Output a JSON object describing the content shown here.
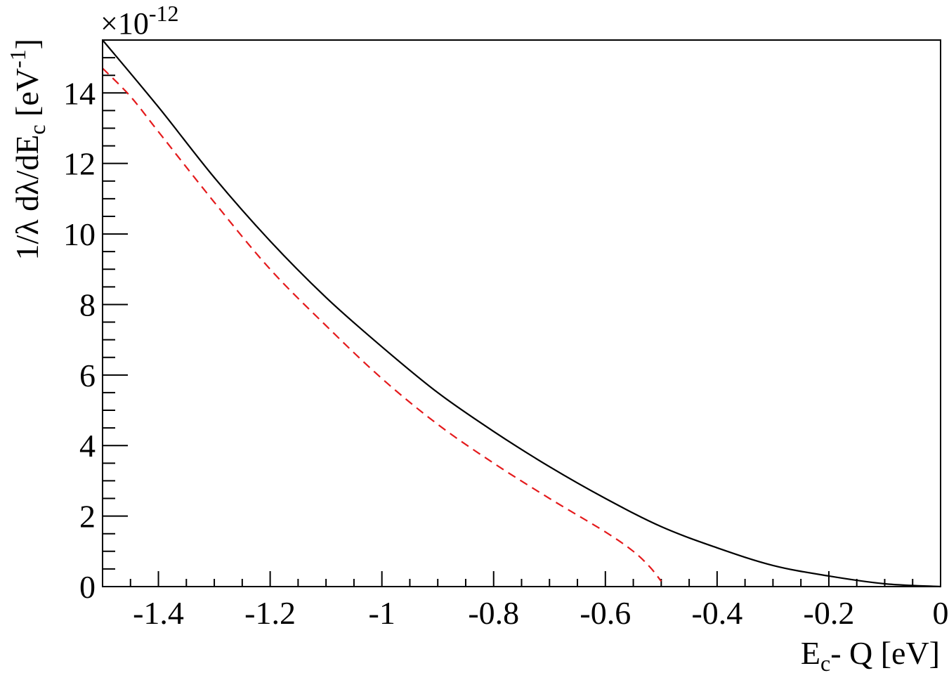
{
  "chart_data": {
    "type": "line",
    "title": "",
    "exponent": {
      "base": "×10",
      "power": "-12"
    },
    "xlabel": {
      "main": "E",
      "sub": "c",
      "rest": "- Q [eV]"
    },
    "ylabel": {
      "p1": "1/λ dλ/dE",
      "sub": "c",
      "p2": " [eV",
      "sup": "-1",
      "p3": "]"
    },
    "xlim": [
      -1.5,
      0
    ],
    "ylim": [
      0,
      15.5
    ],
    "x_ticks": [
      -1.4,
      -1.2,
      -1,
      -0.8,
      -0.6,
      -0.4,
      -0.2,
      0
    ],
    "x_tick_labels": [
      "-1.4",
      "-1.2",
      "-1",
      "-0.8",
      "-0.6",
      "-0.4",
      "-0.2",
      "0"
    ],
    "y_ticks": [
      0,
      2,
      4,
      6,
      8,
      10,
      12,
      14
    ],
    "y_tick_labels": [
      "0",
      "2",
      "4",
      "6",
      "8",
      "10",
      "12",
      "14"
    ],
    "grid": false,
    "series": [
      {
        "color": "#000000",
        "style": "solid",
        "x": [
          -1.5,
          -1.4,
          -1.3,
          -1.2,
          -1.1,
          -1.0,
          -0.9,
          -0.8,
          -0.7,
          -0.6,
          -0.5,
          -0.4,
          -0.3,
          -0.2,
          -0.1,
          0.0
        ],
        "y": [
          15.5,
          13.6,
          11.6,
          9.8,
          8.2,
          6.8,
          5.5,
          4.4,
          3.4,
          2.5,
          1.7,
          1.1,
          0.6,
          0.3,
          0.08,
          0.0
        ]
      },
      {
        "color": "#e41a1c",
        "style": "dashed",
        "x": [
          -1.5,
          -1.45,
          -1.4,
          -1.3,
          -1.2,
          -1.1,
          -1.0,
          -0.9,
          -0.8,
          -0.7,
          -0.6,
          -0.55,
          -0.52,
          -0.5
        ],
        "y": [
          14.7,
          13.9,
          12.9,
          10.9,
          9.0,
          7.4,
          5.9,
          4.6,
          3.5,
          2.5,
          1.55,
          1.0,
          0.55,
          0.15
        ]
      }
    ]
  }
}
